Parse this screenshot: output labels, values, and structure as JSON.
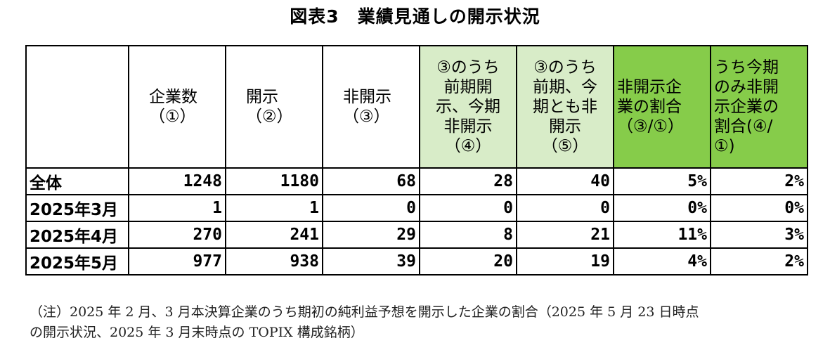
{
  "title": "図表3　業績見通しの開示状況",
  "columns": [
    {
      "lines": []
    },
    {
      "lines": [
        "企業数",
        "（①）"
      ]
    },
    {
      "lines": [
        "開示",
        "（②）"
      ]
    },
    {
      "lines": [
        "非開示",
        "（③）"
      ]
    },
    {
      "lines": [
        "③のうち",
        "前期開",
        "示、今期",
        "非開示",
        "（④）"
      ]
    },
    {
      "lines": [
        "③のうち",
        "前期、今",
        "期とも非",
        "開示",
        "（⑤）"
      ]
    },
    {
      "lines": [
        "非開示企",
        "業の割合",
        "（③/①）"
      ]
    },
    {
      "lines": [
        "うち今期",
        "のみ非開",
        "示企業の",
        "割合(④/",
        "①)"
      ]
    }
  ],
  "rows": [
    {
      "label": "全体",
      "values": [
        "1248",
        "1180",
        "68",
        "28",
        "40",
        "5%",
        "2%"
      ]
    },
    {
      "label": "2025年3月",
      "values": [
        "1",
        "1",
        "0",
        "0",
        "0",
        "0%",
        "0%"
      ]
    },
    {
      "label": "2025年4月",
      "values": [
        "270",
        "241",
        "29",
        "8",
        "21",
        "11%",
        "3%"
      ]
    },
    {
      "label": "2025年5月",
      "values": [
        "977",
        "938",
        "39",
        "20",
        "19",
        "4%",
        "2%"
      ]
    }
  ],
  "note": {
    "line1": "（注）2025 年 2 月、3 月本決算企業のうち期初の純利益予想を開示した企業の割合（2025 年 5 月 23 日時点",
    "line2": "の開示状況、2025 年 3 月末時点の TOPIX 構成銘柄）"
  },
  "colors": {
    "light_green": "#d8ecc8",
    "green": "#86cc4a"
  }
}
